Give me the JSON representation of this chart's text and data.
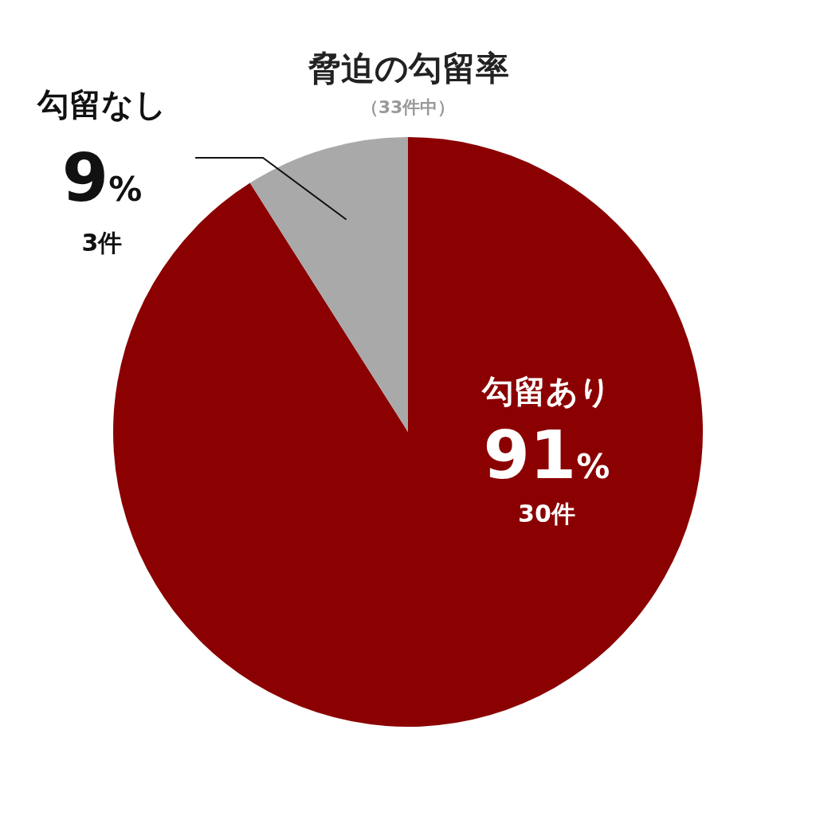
{
  "chart_data": {
    "type": "pie",
    "title": "脅迫の勾留率",
    "subtitle": "（33件中）",
    "categories": [
      "勾留あり",
      "勾留なし"
    ],
    "values": [
      91,
      9
    ],
    "colors": [
      "#8b0000",
      "#a9a9a9"
    ],
    "value_labels": [
      "91%",
      "9%"
    ],
    "annotations": [
      "30件",
      "3件"
    ]
  }
}
